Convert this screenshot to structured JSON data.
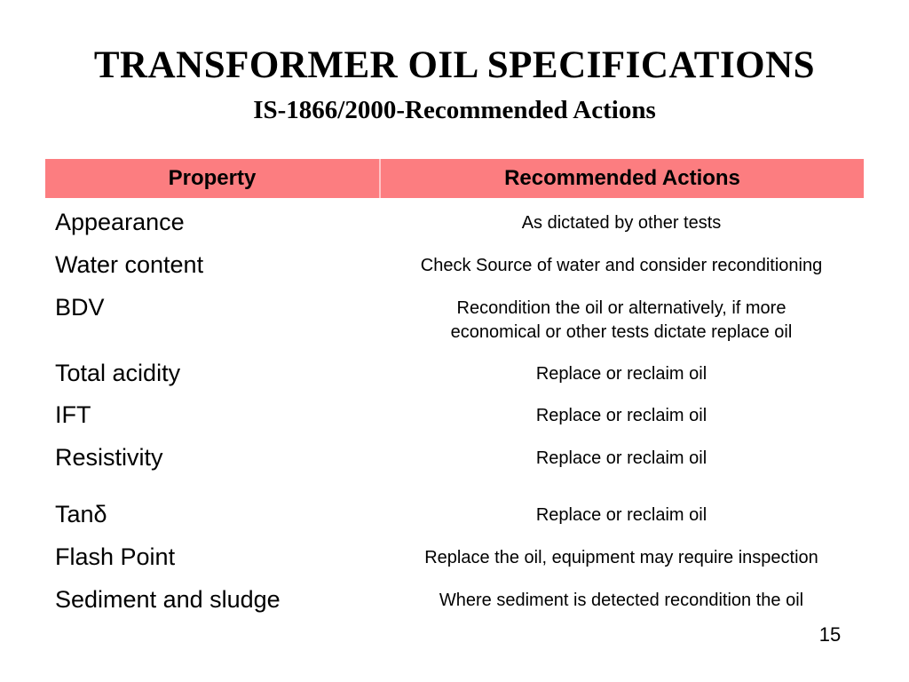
{
  "slide": {
    "title": "TRANSFORMER OIL SPECIFICATIONS",
    "subtitle": "IS-1866/2000-Recommended Actions",
    "page_number": "15",
    "colors": {
      "background": "#FFFFFF",
      "header_bg": "#FC7D80",
      "text": "#000000"
    }
  },
  "table": {
    "columns": [
      "Property",
      "Recommended Actions"
    ],
    "rows": [
      {
        "property": "Appearance",
        "action": "As dictated by other tests"
      },
      {
        "property": "Water content",
        "action": "Check Source of water and consider reconditioning"
      },
      {
        "property": "BDV",
        "action": "Recondition the oil or alternatively, if more\neconomical or other tests dictate replace oil"
      },
      {
        "property": "Total acidity",
        "action": "Replace or reclaim oil"
      },
      {
        "property": "IFT",
        "action": "Replace or reclaim oil"
      },
      {
        "property": "Resistivity",
        "action": "Replace or reclaim oil"
      },
      {
        "property": "Tanδ",
        "action": "Replace or reclaim oil"
      },
      {
        "property": "Flash Point",
        "action": "Replace the oil, equipment may require inspection"
      },
      {
        "property": "Sediment and sludge",
        "action": "Where sediment is detected recondition the oil"
      }
    ]
  }
}
